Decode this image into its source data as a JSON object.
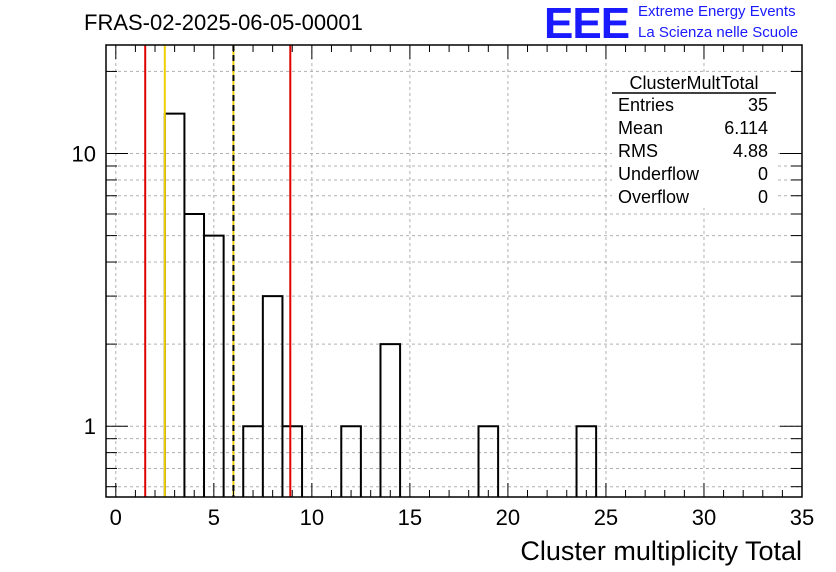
{
  "header": {
    "title": "FRAS-02-2025-06-05-00001",
    "logo_text": "EEE",
    "logo_line1": "Extreme Energy Events",
    "logo_line2": "La Scienza nelle Scuole"
  },
  "stats_box": {
    "name": "ClusterMultTotal",
    "rows": [
      {
        "label": "Entries",
        "value": "35"
      },
      {
        "label": "Mean",
        "value": "6.114"
      },
      {
        "label": "RMS",
        "value": "4.88"
      },
      {
        "label": "Underflow",
        "value": "0"
      },
      {
        "label": "Overflow",
        "value": "0"
      }
    ]
  },
  "chart_data": {
    "type": "histogram",
    "xlabel": "Cluster multiplicity Total",
    "ylabel": "",
    "xlim": [
      -0.5,
      35
    ],
    "ylim": [
      0.55,
      25
    ],
    "y_log": true,
    "grid": true,
    "x_ticks": [
      0,
      5,
      10,
      15,
      20,
      25,
      30,
      35
    ],
    "y_tick_labels": [
      1,
      10
    ],
    "bin_width": 1,
    "bins": [
      {
        "x": 3,
        "count": 14
      },
      {
        "x": 4,
        "count": 6
      },
      {
        "x": 5,
        "count": 5
      },
      {
        "x": 7,
        "count": 1
      },
      {
        "x": 8,
        "count": 3
      },
      {
        "x": 9,
        "count": 1
      },
      {
        "x": 12,
        "count": 1
      },
      {
        "x": 14,
        "count": 2
      },
      {
        "x": 19,
        "count": 1
      },
      {
        "x": 24,
        "count": 1
      }
    ],
    "vertical_lines": [
      {
        "x": 1.5,
        "color": "#e00000",
        "style": "solid"
      },
      {
        "x": 2.5,
        "color": "#f0d000",
        "style": "solid"
      },
      {
        "x": 6.0,
        "color": "#f0d000",
        "style": "solid"
      },
      {
        "x": 6.0,
        "color": "#000000",
        "style": "dashed"
      },
      {
        "x": 8.9,
        "color": "#e00000",
        "style": "solid"
      }
    ]
  }
}
